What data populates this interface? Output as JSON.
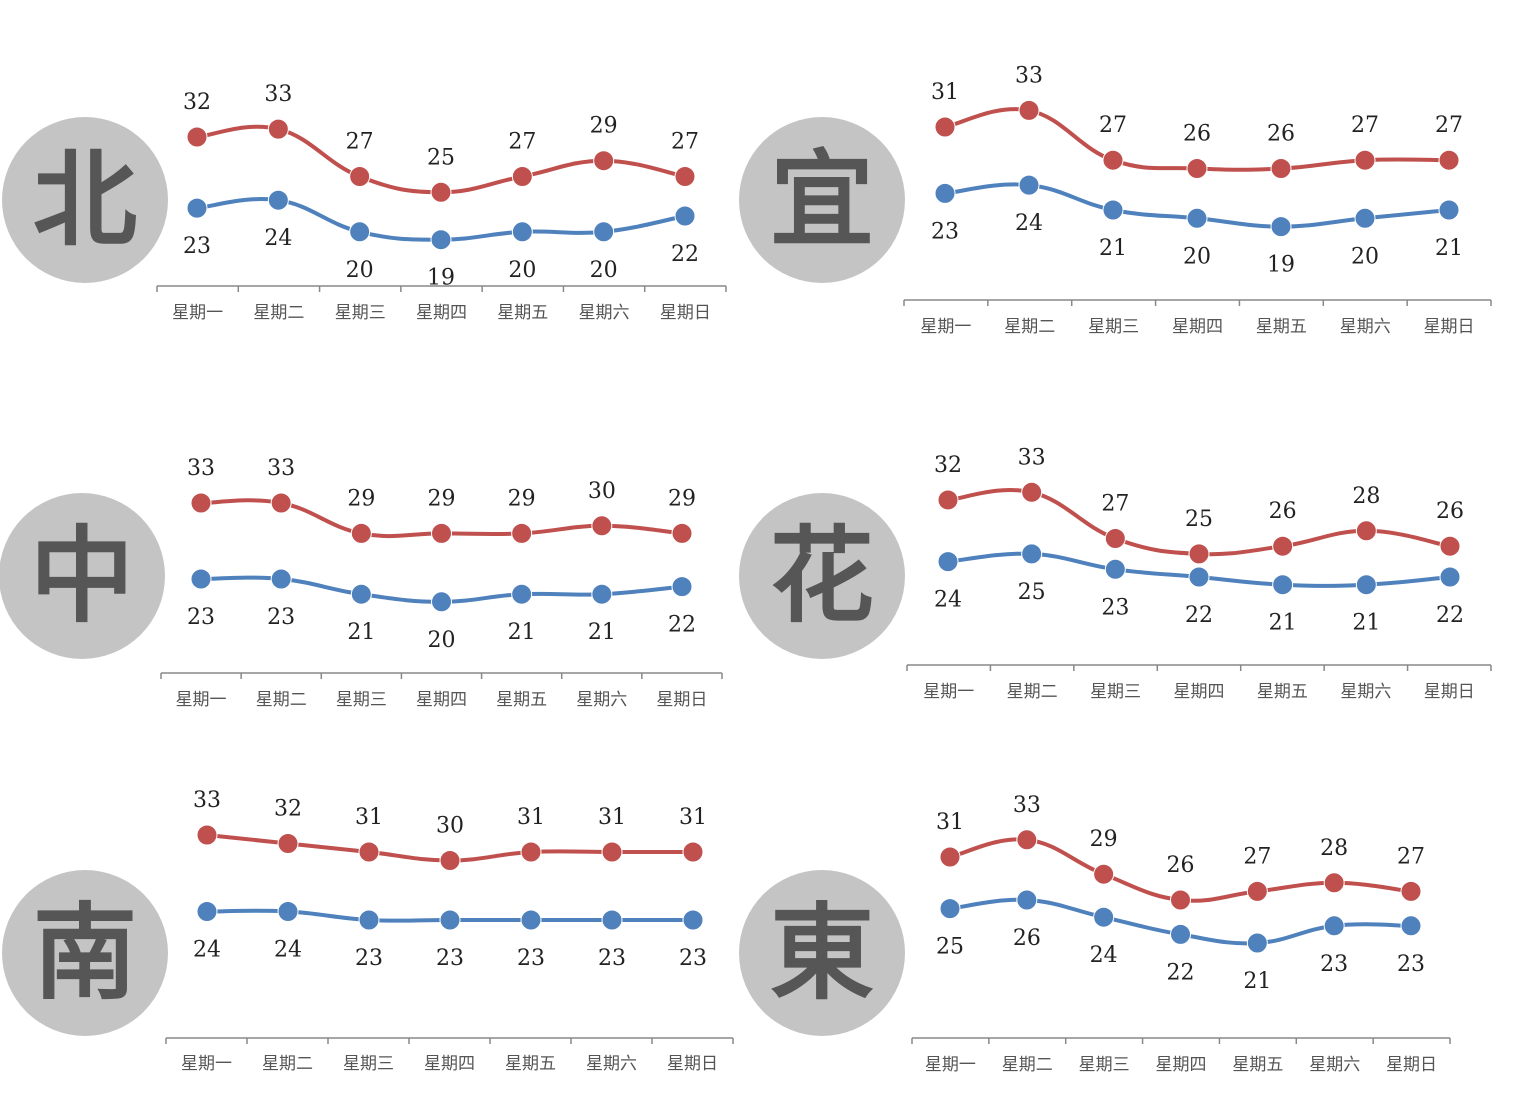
{
  "colors": {
    "high": "#c0504d",
    "low": "#4f81bd",
    "badge": "#c4c4c4",
    "badge_text": "#565656",
    "axis": "#888888"
  },
  "categories": [
    "星期一",
    "星期二",
    "星期三",
    "星期四",
    "星期五",
    "星期六",
    "星期日"
  ],
  "chart_data": [
    {
      "type": "line",
      "region": "北",
      "categories": [
        "星期一",
        "星期二",
        "星期三",
        "星期四",
        "星期五",
        "星期六",
        "星期日"
      ],
      "series": [
        {
          "values": [
            32,
            33,
            27,
            25,
            27,
            29,
            27
          ]
        },
        {
          "values": [
            23,
            24,
            20,
            19,
            20,
            20,
            22
          ]
        }
      ]
    },
    {
      "type": "line",
      "region": "宜",
      "categories": [
        "星期一",
        "星期二",
        "星期三",
        "星期四",
        "星期五",
        "星期六",
        "星期日"
      ],
      "series": [
        {
          "values": [
            31,
            33,
            27,
            26,
            26,
            27,
            27
          ]
        },
        {
          "values": [
            23,
            24,
            21,
            20,
            19,
            20,
            21
          ]
        }
      ]
    },
    {
      "type": "line",
      "region": "中",
      "categories": [
        "星期一",
        "星期二",
        "星期三",
        "星期四",
        "星期五",
        "星期六",
        "星期日"
      ],
      "series": [
        {
          "values": [
            33,
            33,
            29,
            29,
            29,
            30,
            29
          ]
        },
        {
          "values": [
            23,
            23,
            21,
            20,
            21,
            21,
            22
          ]
        }
      ]
    },
    {
      "type": "line",
      "region": "花",
      "categories": [
        "星期一",
        "星期二",
        "星期三",
        "星期四",
        "星期五",
        "星期六",
        "星期日"
      ],
      "series": [
        {
          "values": [
            32,
            33,
            27,
            25,
            26,
            28,
            26
          ]
        },
        {
          "values": [
            24,
            25,
            23,
            22,
            21,
            21,
            22
          ]
        }
      ]
    },
    {
      "type": "line",
      "region": "南",
      "categories": [
        "星期一",
        "星期二",
        "星期三",
        "星期四",
        "星期五",
        "星期六",
        "星期日"
      ],
      "series": [
        {
          "values": [
            33,
            32,
            31,
            30,
            31,
            31,
            31
          ]
        },
        {
          "values": [
            24,
            24,
            23,
            23,
            23,
            23,
            23
          ]
        }
      ]
    },
    {
      "type": "line",
      "region": "東",
      "categories": [
        "星期一",
        "星期二",
        "星期三",
        "星期四",
        "星期五",
        "星期六",
        "星期日"
      ],
      "series": [
        {
          "values": [
            31,
            33,
            29,
            26,
            27,
            28,
            27
          ]
        },
        {
          "values": [
            25,
            26,
            24,
            22,
            21,
            23,
            23
          ]
        }
      ]
    }
  ]
}
